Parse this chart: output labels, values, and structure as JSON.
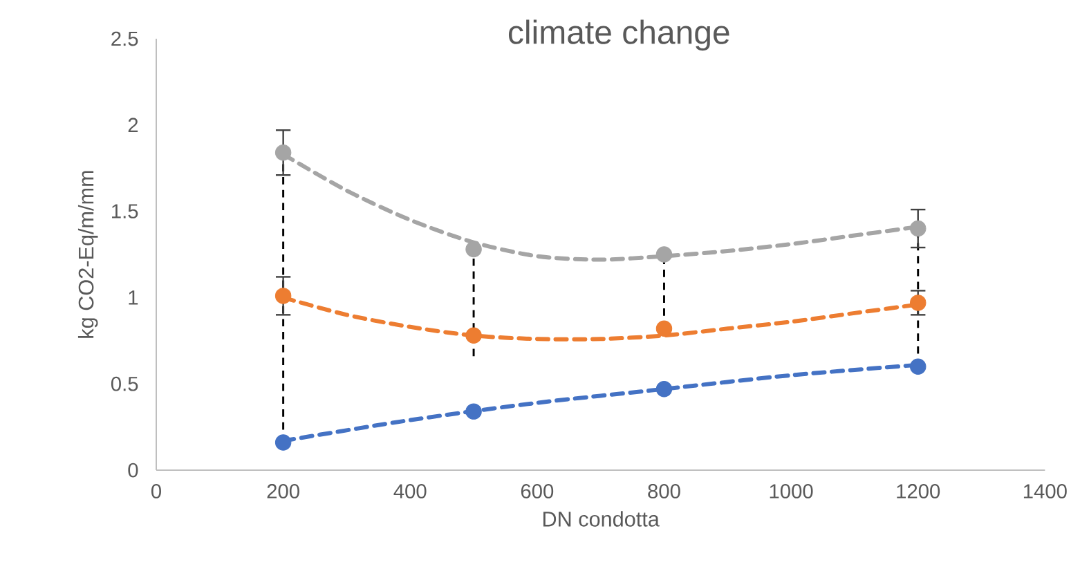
{
  "chart_data": {
    "type": "scatter",
    "title": "climate change",
    "xlabel": "DN condotta",
    "ylabel": "kg CO2-Eq/m/mm",
    "xlim": [
      0,
      1400
    ],
    "xticks": [
      0,
      200,
      400,
      600,
      800,
      1000,
      1200,
      1400
    ],
    "ylim": [
      0,
      2.5
    ],
    "yticks": [
      0,
      0.5,
      1,
      1.5,
      2,
      2.5
    ],
    "grid": false,
    "series": [
      {
        "type": "line",
        "color": "#000000",
        "line_style": "dashed",
        "marker": "none",
        "x": [
          200,
          200
        ],
        "values": [
          0.16,
          1.84
        ]
      },
      {
        "type": "line",
        "color": "#000000",
        "line_style": "dashed",
        "marker": "none",
        "x": [
          500,
          500
        ],
        "values": [
          0.66,
          1.28
        ]
      },
      {
        "type": "line",
        "color": "#000000",
        "line_style": "dashed",
        "marker": "none",
        "x": [
          800,
          800
        ],
        "values": [
          0.82,
          1.25
        ]
      },
      {
        "type": "line",
        "color": "#000000",
        "line_style": "dashed",
        "marker": "none",
        "x": [
          1200,
          1200
        ],
        "values": [
          0.6,
          1.4
        ]
      },
      {
        "type": "line",
        "color": "#a5a5a5",
        "line_style": "dashed",
        "marker": "none",
        "x": [
          200,
          300,
          400,
          500,
          600,
          700,
          800,
          900,
          1000,
          1100,
          1200
        ],
        "values": [
          1.83,
          1.62,
          1.45,
          1.32,
          1.24,
          1.22,
          1.24,
          1.27,
          1.31,
          1.36,
          1.41
        ]
      },
      {
        "type": "line",
        "color": "#ed7d31",
        "line_style": "dashed",
        "marker": "none",
        "x": [
          200,
          300,
          400,
          500,
          600,
          700,
          800,
          900,
          1000,
          1100,
          1200
        ],
        "values": [
          1.0,
          0.9,
          0.83,
          0.78,
          0.76,
          0.76,
          0.78,
          0.82,
          0.86,
          0.91,
          0.96
        ]
      },
      {
        "type": "line",
        "color": "#4472c4",
        "line_style": "dashed",
        "marker": "none",
        "x": [
          200,
          400,
          600,
          800,
          1000,
          1200
        ],
        "values": [
          0.17,
          0.29,
          0.39,
          0.47,
          0.55,
          0.61
        ]
      },
      {
        "color": "#a5a5a5",
        "marker": "circle",
        "x": [
          200,
          500,
          800,
          1200
        ],
        "values": [
          1.84,
          1.28,
          1.25,
          1.4
        ],
        "errors": [
          0.13,
          null,
          null,
          0.11
        ]
      },
      {
        "color": "#ed7d31",
        "marker": "circle",
        "x": [
          200,
          500,
          800,
          1200
        ],
        "values": [
          1.01,
          0.78,
          0.82,
          0.97
        ],
        "errors": [
          0.11,
          null,
          null,
          0.07
        ]
      },
      {
        "color": "#4472c4",
        "marker": "circle",
        "x": [
          200,
          500,
          800,
          1200
        ],
        "values": [
          0.16,
          0.34,
          0.47,
          0.6
        ]
      }
    ]
  }
}
